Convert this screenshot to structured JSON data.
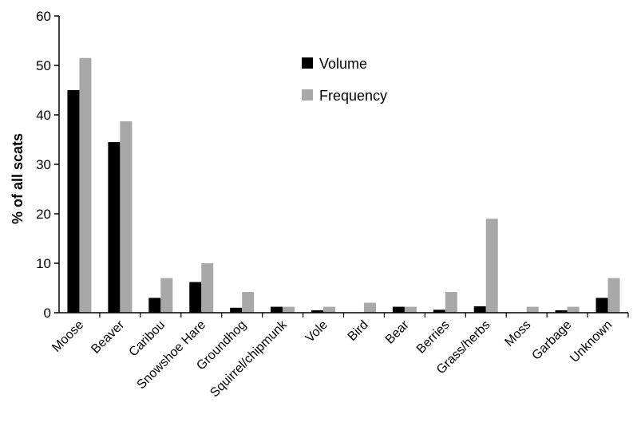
{
  "chart_data": {
    "type": "bar",
    "title": "",
    "xlabel": "",
    "ylabel": "% of all scats",
    "ylim": [
      0,
      60
    ],
    "yticks": [
      0,
      10,
      20,
      30,
      40,
      50,
      60
    ],
    "grid": false,
    "legend_position": "top-center",
    "categories": [
      "Moose",
      "Beaver",
      "Caribou",
      "Snowshoe Hare",
      "Groundhog",
      "Squirrel/chipmunk",
      "Vole",
      "Bird",
      "Bear",
      "Berries",
      "Grass/herbs",
      "Moss",
      "Garbage",
      "Unknown"
    ],
    "series": [
      {
        "name": "Volume",
        "color": "#000000",
        "values": [
          45.0,
          34.5,
          3.0,
          6.2,
          1.0,
          1.2,
          0.5,
          0.0,
          1.2,
          0.6,
          1.3,
          0.0,
          0.5,
          3.0
        ]
      },
      {
        "name": "Frequency",
        "color": "#a8a8a8",
        "values": [
          51.5,
          38.7,
          7.0,
          10.0,
          4.2,
          1.2,
          1.2,
          2.0,
          1.2,
          4.2,
          19.0,
          1.2,
          1.2,
          7.0
        ]
      }
    ]
  }
}
